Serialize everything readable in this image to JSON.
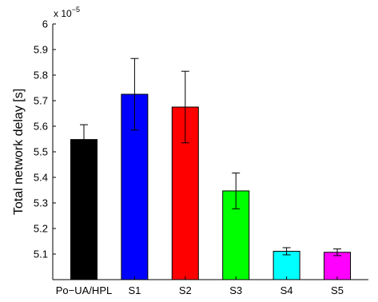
{
  "chart_data": {
    "type": "bar",
    "categories": [
      "Po−UA/HPL",
      "S1",
      "S2",
      "S3",
      "S4",
      "S5"
    ],
    "values": [
      5.548,
      5.725,
      5.675,
      5.347,
      5.111,
      5.107
    ],
    "errors": [
      0.058,
      0.14,
      0.14,
      0.07,
      0.014,
      0.013
    ],
    "bar_colors": [
      "#000000",
      "#0000ff",
      "#ff0000",
      "#00ff00",
      "#00ffff",
      "#ff00ff"
    ],
    "ylabel": "Total network delay [s]",
    "xlabel": "",
    "title": "",
    "y_multiplier_base": "x 10",
    "y_multiplier_exp": "−5",
    "ylim": [
      5.0,
      6.0
    ],
    "yticks": [
      5.1,
      5.2,
      5.3,
      5.4,
      5.5,
      5.6,
      5.7,
      5.8,
      5.9,
      6
    ],
    "ytick_labels": [
      "5.1",
      "5.2",
      "5.3",
      "5.4",
      "5.5",
      "5.6",
      "5.7",
      "5.8",
      "5.9",
      "6"
    ],
    "grid": false
  }
}
